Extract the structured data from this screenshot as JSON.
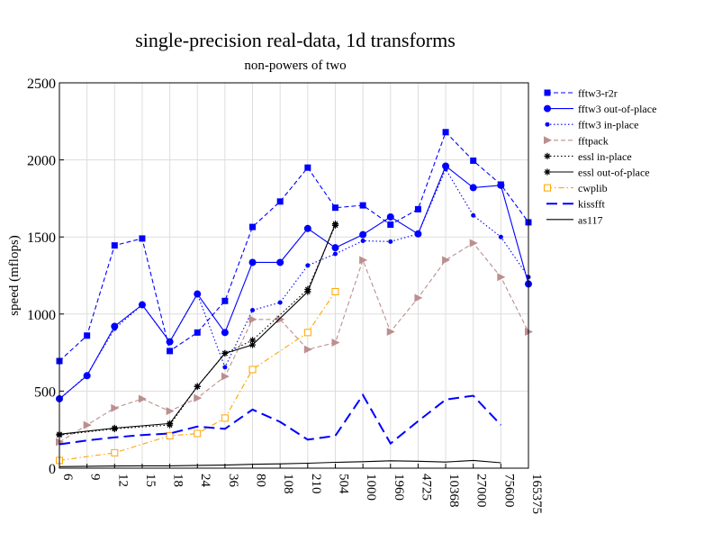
{
  "chart_data": {
    "type": "line",
    "title": "single-precision real-data, 1d transforms",
    "subtitle": "non-powers of two",
    "xlabel": "",
    "ylabel": "speed (mflops)",
    "ylim": [
      0,
      2500
    ],
    "yticks": [
      0,
      500,
      1000,
      1500,
      2000,
      2500
    ],
    "grid": true,
    "legend_position": "right",
    "categories": [
      "6",
      "9",
      "12",
      "15",
      "18",
      "24",
      "36",
      "80",
      "108",
      "210",
      "504",
      "1000",
      "1960",
      "4725",
      "10368",
      "27000",
      "75600",
      "165375"
    ],
    "series": [
      {
        "name": "fftw3-r2r",
        "color": "#0000ff",
        "dash": "dashed",
        "marker": "square",
        "values": [
          695,
          860,
          1445,
          1490,
          760,
          880,
          1085,
          1565,
          1730,
          1950,
          1690,
          1705,
          1580,
          1680,
          2180,
          1995,
          1840,
          1595
        ]
      },
      {
        "name": "fftw3 out-of-place",
        "color": "#0000ff",
        "dash": "solid",
        "marker": "circle",
        "values": [
          450,
          600,
          920,
          1060,
          820,
          1130,
          880,
          1335,
          1335,
          1555,
          1430,
          1515,
          1630,
          1520,
          1960,
          1820,
          1835,
          1195
        ]
      },
      {
        "name": "fftw3 in-place",
        "color": "#0000ff",
        "dash": "dotted",
        "marker": "smallcircle",
        "values": [
          445,
          605,
          905,
          1060,
          820,
          1130,
          655,
          1025,
          1075,
          1315,
          1390,
          1475,
          1470,
          1520,
          1940,
          1640,
          1500,
          1240
        ]
      },
      {
        "name": "fftpack",
        "color": "#bc8f8f",
        "dash": "dashed",
        "marker": "triangle",
        "values": [
          170,
          280,
          390,
          450,
          370,
          455,
          595,
          965,
          965,
          770,
          815,
          1350,
          885,
          1105,
          1350,
          1460,
          1240,
          885
        ]
      },
      {
        "name": "essl in-place",
        "color": "#000000",
        "dash": "dotted",
        "marker": "star",
        "values": [
          215,
          null,
          255,
          null,
          280,
          530,
          745,
          830,
          null,
          1160,
          1575,
          null,
          null,
          null,
          null,
          null,
          null,
          null
        ]
      },
      {
        "name": "essl out-of-place",
        "color": "#000000",
        "dash": "solid",
        "marker": "star",
        "values": [
          220,
          null,
          260,
          null,
          290,
          530,
          745,
          800,
          null,
          1145,
          1585,
          null,
          null,
          null,
          null,
          null,
          null,
          null
        ]
      },
      {
        "name": "cwplib",
        "color": "#ffa500",
        "dash": "dashdot",
        "marker": "opensquare",
        "values": [
          50,
          null,
          100,
          null,
          210,
          225,
          325,
          640,
          null,
          880,
          1145,
          null,
          null,
          null,
          null,
          null,
          null,
          null
        ]
      },
      {
        "name": "kissfft",
        "color": "#0000ff",
        "dash": "longdash",
        "marker": "none",
        "values": [
          155,
          180,
          200,
          215,
          225,
          270,
          255,
          380,
          300,
          185,
          210,
          475,
          160,
          305,
          445,
          470,
          280,
          null
        ]
      },
      {
        "name": "as117",
        "color": "#000000",
        "dash": "solid",
        "marker": "none",
        "values": [
          10,
          12,
          14,
          15,
          15,
          18,
          20,
          25,
          28,
          32,
          38,
          42,
          48,
          45,
          40,
          50,
          35,
          null
        ]
      }
    ]
  }
}
